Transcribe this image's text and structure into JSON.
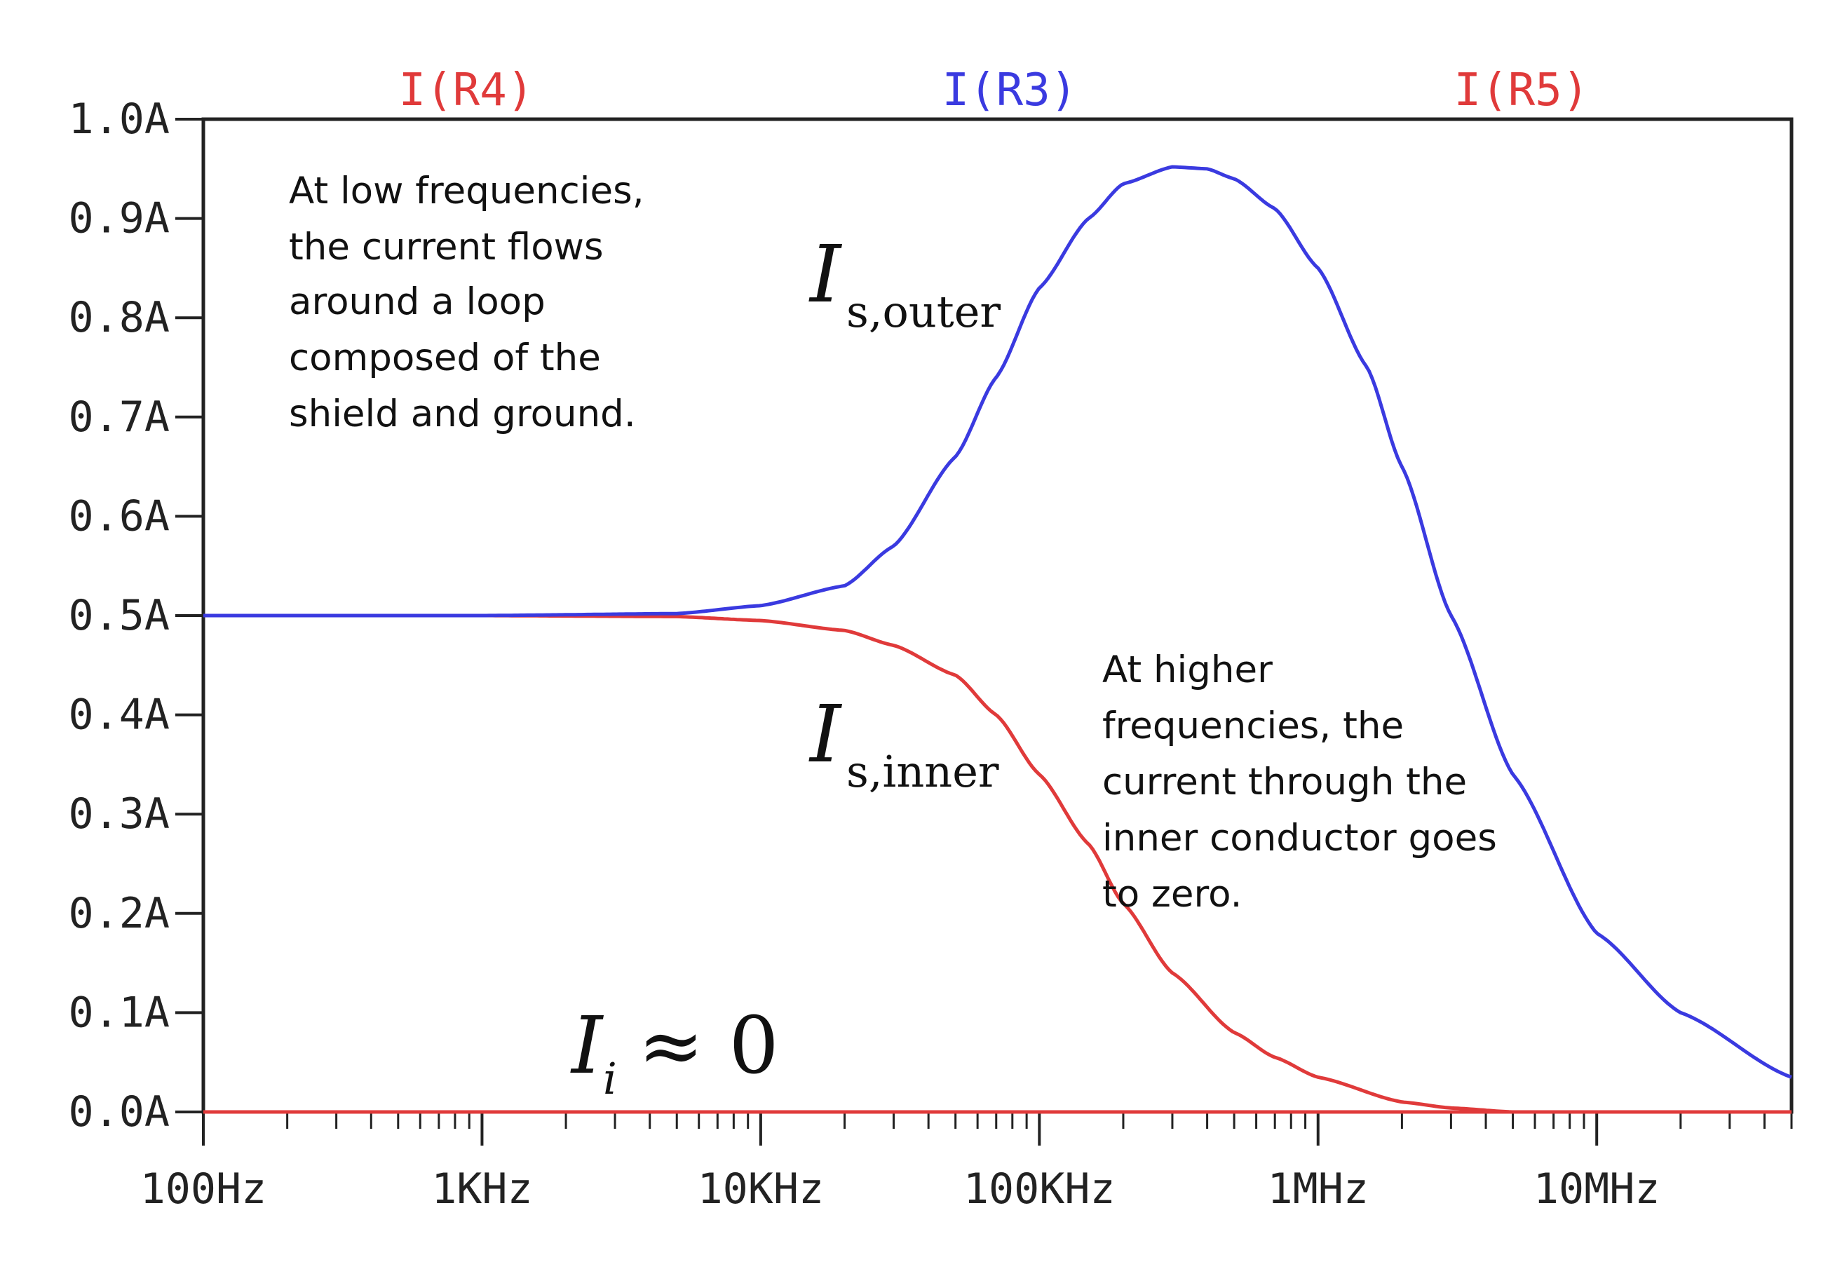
{
  "chart_data": {
    "type": "line",
    "x_scale": "log",
    "xlim": [
      100,
      50000000
    ],
    "ylim": [
      0,
      1.0
    ],
    "grid": false,
    "x_ticks": [
      {
        "value": 100,
        "label": "100Hz"
      },
      {
        "value": 1000,
        "label": "1KHz"
      },
      {
        "value": 10000,
        "label": "10KHz"
      },
      {
        "value": 100000,
        "label": "100KHz"
      },
      {
        "value": 1000000,
        "label": "1MHz"
      },
      {
        "value": 10000000,
        "label": "10MHz"
      }
    ],
    "y_ticks": [
      {
        "value": 0.0,
        "label": "0.0A"
      },
      {
        "value": 0.1,
        "label": "0.1A"
      },
      {
        "value": 0.2,
        "label": "0.2A"
      },
      {
        "value": 0.3,
        "label": "0.3A"
      },
      {
        "value": 0.4,
        "label": "0.4A"
      },
      {
        "value": 0.5,
        "label": "0.5A"
      },
      {
        "value": 0.6,
        "label": "0.6A"
      },
      {
        "value": 0.7,
        "label": "0.7A"
      },
      {
        "value": 0.8,
        "label": "0.8A"
      },
      {
        "value": 0.9,
        "label": "0.9A"
      },
      {
        "value": 1.0,
        "label": "1.0A"
      }
    ],
    "legend_position": "top",
    "series": [
      {
        "name": "I(R4)",
        "color": "#e03a3a",
        "x": [
          100,
          1000,
          5000,
          10000,
          20000,
          30000,
          50000,
          70000,
          100000,
          150000,
          200000,
          300000,
          500000,
          700000,
          1000000,
          2000000,
          3000000,
          5000000,
          10000000,
          50000000
        ],
        "y": [
          0.5,
          0.5,
          0.499,
          0.495,
          0.485,
          0.47,
          0.44,
          0.4,
          0.34,
          0.27,
          0.21,
          0.14,
          0.08,
          0.055,
          0.035,
          0.01,
          0.004,
          0.0,
          0.0,
          0.0
        ]
      },
      {
        "name": "I(R3)",
        "color": "#3a3ae0",
        "x": [
          100,
          1000,
          5000,
          10000,
          20000,
          30000,
          50000,
          70000,
          100000,
          150000,
          200000,
          300000,
          400000,
          500000,
          700000,
          1000000,
          1500000,
          2000000,
          3000000,
          5000000,
          10000000,
          20000000,
          50000000
        ],
        "y": [
          0.5,
          0.5,
          0.502,
          0.51,
          0.53,
          0.57,
          0.66,
          0.74,
          0.83,
          0.9,
          0.935,
          0.952,
          0.95,
          0.94,
          0.91,
          0.85,
          0.75,
          0.65,
          0.5,
          0.34,
          0.18,
          0.1,
          0.035
        ]
      },
      {
        "name": "I(R5)",
        "color": "#e03a3a",
        "x": [
          100,
          1000,
          10000,
          100000,
          1000000,
          10000000,
          50000000
        ],
        "y": [
          0.0,
          0.0,
          0.0,
          0.0,
          0.0,
          0.0,
          0.0
        ]
      }
    ]
  },
  "annotations": {
    "low_freq_note": [
      "At low frequencies,",
      "the current flows",
      "around a loop",
      "composed of the",
      "shield and ground."
    ],
    "high_freq_note": [
      "At higher",
      "frequencies, the",
      "current through the",
      "inner conductor goes",
      "to zero."
    ],
    "is_outer": {
      "symbol": "I",
      "subscript": "s,outer"
    },
    "is_inner": {
      "symbol": "I",
      "subscript": "s,inner"
    },
    "ii": {
      "symbol": "I",
      "subscript": "i",
      "relation": "≈ 0"
    }
  }
}
